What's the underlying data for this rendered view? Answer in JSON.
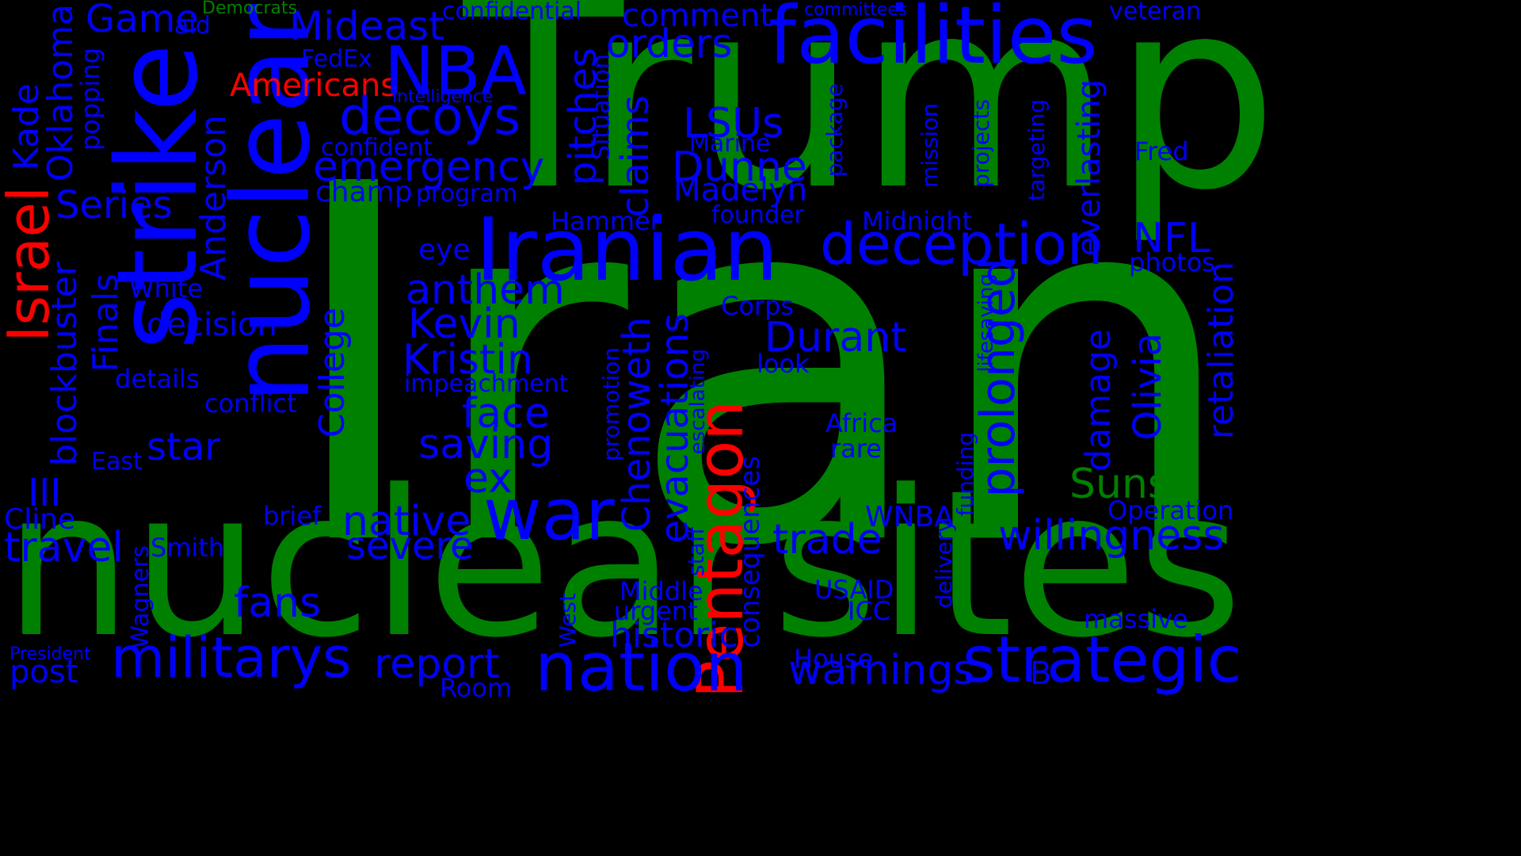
{
  "colors": {
    "background": "#000000",
    "green": "#008000",
    "blue": "#0000ff",
    "red": "#ff0000"
  },
  "words": [
    {
      "text": "Iran",
      "color": "green",
      "orientation": "horizontal"
    },
    {
      "text": "Trump",
      "color": "green",
      "orientation": "horizontal"
    },
    {
      "text": "nuclear",
      "color": "green",
      "orientation": "horizontal"
    },
    {
      "text": "sites",
      "color": "green",
      "orientation": "horizontal"
    },
    {
      "text": "strike",
      "color": "blue",
      "orientation": "vertical"
    },
    {
      "text": "nuclear",
      "color": "blue",
      "orientation": "vertical"
    },
    {
      "text": "facilities",
      "color": "blue",
      "orientation": "horizontal"
    },
    {
      "text": "Iranian",
      "color": "blue",
      "orientation": "horizontal"
    },
    {
      "text": "Pentagon",
      "color": "red",
      "orientation": "vertical"
    },
    {
      "text": "Israel",
      "color": "red",
      "orientation": "vertical"
    },
    {
      "text": "Americans",
      "color": "red",
      "orientation": "horizontal"
    },
    {
      "text": "militarys",
      "color": "blue",
      "orientation": "horizontal"
    },
    {
      "text": "nation",
      "color": "blue",
      "orientation": "horizontal"
    },
    {
      "text": "strategic",
      "color": "blue",
      "orientation": "horizontal"
    },
    {
      "text": "war",
      "color": "blue",
      "orientation": "horizontal"
    },
    {
      "text": "NBA",
      "color": "blue",
      "orientation": "horizontal"
    },
    {
      "text": "deception",
      "color": "blue",
      "orientation": "horizontal"
    },
    {
      "text": "decoys",
      "color": "blue",
      "orientation": "horizontal"
    },
    {
      "text": "Mideast",
      "color": "blue",
      "orientation": "horizontal"
    },
    {
      "text": "orders",
      "color": "blue",
      "orientation": "horizontal"
    },
    {
      "text": "Game",
      "color": "blue",
      "orientation": "horizontal"
    },
    {
      "text": "comment",
      "color": "blue",
      "orientation": "horizontal"
    },
    {
      "text": "confidential",
      "color": "blue",
      "orientation": "horizontal"
    },
    {
      "text": "emergency",
      "color": "blue",
      "orientation": "horizontal"
    },
    {
      "text": "prolonged",
      "color": "blue",
      "orientation": "vertical"
    },
    {
      "text": "willingness",
      "color": "blue",
      "orientation": "horizontal"
    },
    {
      "text": "Suns",
      "color": "green",
      "orientation": "horizontal"
    },
    {
      "text": "Democrats",
      "color": "green",
      "orientation": "horizontal"
    },
    {
      "text": "Durant",
      "color": "blue",
      "orientation": "horizontal"
    },
    {
      "text": "trade",
      "color": "blue",
      "orientation": "horizontal"
    },
    {
      "text": "Kristin",
      "color": "blue",
      "orientation": "horizontal"
    },
    {
      "text": "Kevin",
      "color": "blue",
      "orientation": "horizontal"
    },
    {
      "text": "anthem",
      "color": "blue",
      "orientation": "horizontal"
    },
    {
      "text": "face",
      "color": "blue",
      "orientation": "horizontal"
    },
    {
      "text": "saving",
      "color": "blue",
      "orientation": "horizontal"
    },
    {
      "text": "ex",
      "color": "blue",
      "orientation": "horizontal"
    },
    {
      "text": "native",
      "color": "blue",
      "orientation": "horizontal"
    },
    {
      "text": "severe",
      "color": "blue",
      "orientation": "horizontal"
    },
    {
      "text": "report",
      "color": "blue",
      "orientation": "horizontal"
    },
    {
      "text": "warnings",
      "color": "blue",
      "orientation": "horizontal"
    },
    {
      "text": "fans",
      "color": "blue",
      "orientation": "horizontal"
    },
    {
      "text": "travel",
      "color": "blue",
      "orientation": "horizontal"
    },
    {
      "text": "post",
      "color": "blue",
      "orientation": "horizontal"
    },
    {
      "text": "star",
      "color": "blue",
      "orientation": "horizontal"
    },
    {
      "text": "III",
      "color": "blue",
      "orientation": "horizontal"
    },
    {
      "text": "Series",
      "color": "blue",
      "orientation": "horizontal"
    },
    {
      "text": "Finals",
      "color": "blue",
      "orientation": "vertical"
    },
    {
      "text": "blockbuster",
      "color": "blue",
      "orientation": "vertical"
    },
    {
      "text": "Oklahoma",
      "color": "blue",
      "orientation": "vertical"
    },
    {
      "text": "Kade",
      "color": "blue",
      "orientation": "vertical"
    },
    {
      "text": "Anderson",
      "color": "blue",
      "orientation": "vertical"
    },
    {
      "text": "College",
      "color": "blue",
      "orientation": "vertical"
    },
    {
      "text": "decision",
      "color": "blue",
      "orientation": "horizontal"
    },
    {
      "text": "pitches",
      "color": "blue",
      "orientation": "vertical"
    },
    {
      "text": "claims",
      "color": "blue",
      "orientation": "vertical"
    },
    {
      "text": "LSUs",
      "color": "blue",
      "orientation": "horizontal"
    },
    {
      "text": "Dunne",
      "color": "blue",
      "orientation": "horizontal"
    },
    {
      "text": "Madelyn",
      "color": "blue",
      "orientation": "horizontal"
    },
    {
      "text": "Chenoweth",
      "color": "blue",
      "orientation": "vertical"
    },
    {
      "text": "evacuations",
      "color": "blue",
      "orientation": "vertical"
    },
    {
      "text": "NFL",
      "color": "blue",
      "orientation": "horizontal"
    },
    {
      "text": "photos",
      "color": "blue",
      "orientation": "horizontal"
    },
    {
      "text": "Olivia",
      "color": "blue",
      "orientation": "vertical"
    },
    {
      "text": "damage",
      "color": "blue",
      "orientation": "vertical"
    },
    {
      "text": "retaliation",
      "color": "blue",
      "orientation": "vertical"
    },
    {
      "text": "everlasting",
      "color": "blue",
      "orientation": "vertical"
    },
    {
      "text": "Fred",
      "color": "blue",
      "orientation": "horizontal"
    },
    {
      "text": "Operation",
      "color": "blue",
      "orientation": "horizontal"
    },
    {
      "text": "massive",
      "color": "blue",
      "orientation": "horizontal"
    },
    {
      "text": "historic",
      "color": "blue",
      "orientation": "horizontal"
    },
    {
      "text": "Middle",
      "color": "blue",
      "orientation": "horizontal"
    },
    {
      "text": "urgent",
      "color": "blue",
      "orientation": "horizontal"
    },
    {
      "text": "consequences",
      "color": "blue",
      "orientation": "vertical"
    },
    {
      "text": "WNBA",
      "color": "blue",
      "orientation": "horizontal"
    },
    {
      "text": "USAID",
      "color": "blue",
      "orientation": "horizontal"
    },
    {
      "text": "ICC",
      "color": "blue",
      "orientation": "horizontal"
    },
    {
      "text": "House",
      "color": "blue",
      "orientation": "horizontal"
    },
    {
      "text": "Room",
      "color": "blue",
      "orientation": "horizontal"
    },
    {
      "text": "B",
      "color": "blue",
      "orientation": "horizontal"
    },
    {
      "text": "Africa",
      "color": "blue",
      "orientation": "horizontal"
    },
    {
      "text": "rare",
      "color": "blue",
      "orientation": "horizontal"
    },
    {
      "text": "look",
      "color": "blue",
      "orientation": "horizontal"
    },
    {
      "text": "Corps",
      "color": "blue",
      "orientation": "horizontal"
    },
    {
      "text": "Marine",
      "color": "blue",
      "orientation": "horizontal"
    },
    {
      "text": "founder",
      "color": "blue",
      "orientation": "horizontal"
    },
    {
      "text": "Midnight",
      "color": "blue",
      "orientation": "horizontal"
    },
    {
      "text": "Hammer",
      "color": "blue",
      "orientation": "horizontal"
    },
    {
      "text": "eye",
      "color": "blue",
      "orientation": "horizontal"
    },
    {
      "text": "program",
      "color": "blue",
      "orientation": "horizontal"
    },
    {
      "text": "champ",
      "color": "blue",
      "orientation": "horizontal"
    },
    {
      "text": "confident",
      "color": "blue",
      "orientation": "horizontal"
    },
    {
      "text": "intelligence",
      "color": "blue",
      "orientation": "horizontal"
    },
    {
      "text": "FedEx",
      "color": "blue",
      "orientation": "horizontal"
    },
    {
      "text": "aid",
      "color": "blue",
      "orientation": "horizontal"
    },
    {
      "text": "popping",
      "color": "blue",
      "orientation": "vertical"
    },
    {
      "text": "White",
      "color": "blue",
      "orientation": "horizontal"
    },
    {
      "text": "details",
      "color": "blue",
      "orientation": "horizontal"
    },
    {
      "text": "conflict",
      "color": "blue",
      "orientation": "horizontal"
    },
    {
      "text": "impeachment",
      "color": "blue",
      "orientation": "horizontal"
    },
    {
      "text": "East",
      "color": "blue",
      "orientation": "horizontal"
    },
    {
      "text": "Cline",
      "color": "blue",
      "orientation": "horizontal"
    },
    {
      "text": "brief",
      "color": "blue",
      "orientation": "horizontal"
    },
    {
      "text": "Smith",
      "color": "blue",
      "orientation": "horizontal"
    },
    {
      "text": "Wagners",
      "color": "blue",
      "orientation": "vertical"
    },
    {
      "text": "President",
      "color": "blue",
      "orientation": "horizontal"
    },
    {
      "text": "committees",
      "color": "blue",
      "orientation": "horizontal"
    },
    {
      "text": "veteran",
      "color": "blue",
      "orientation": "horizontal"
    },
    {
      "text": "Situation",
      "color": "blue",
      "orientation": "vertical"
    },
    {
      "text": "package",
      "color": "blue",
      "orientation": "vertical"
    },
    {
      "text": "mission",
      "color": "blue",
      "orientation": "vertical"
    },
    {
      "text": "projects",
      "color": "blue",
      "orientation": "vertical"
    },
    {
      "text": "targeting",
      "color": "blue",
      "orientation": "vertical"
    },
    {
      "text": "promotion",
      "color": "blue",
      "orientation": "vertical"
    },
    {
      "text": "escalating",
      "color": "blue",
      "orientation": "vertical"
    },
    {
      "text": "staff",
      "color": "blue",
      "orientation": "vertical"
    },
    {
      "text": "West",
      "color": "blue",
      "orientation": "vertical"
    },
    {
      "text": "lifesaving",
      "color": "blue",
      "orientation": "vertical"
    },
    {
      "text": "funding",
      "color": "blue",
      "orientation": "vertical"
    },
    {
      "text": "delivery",
      "color": "blue",
      "orientation": "vertical"
    }
  ]
}
